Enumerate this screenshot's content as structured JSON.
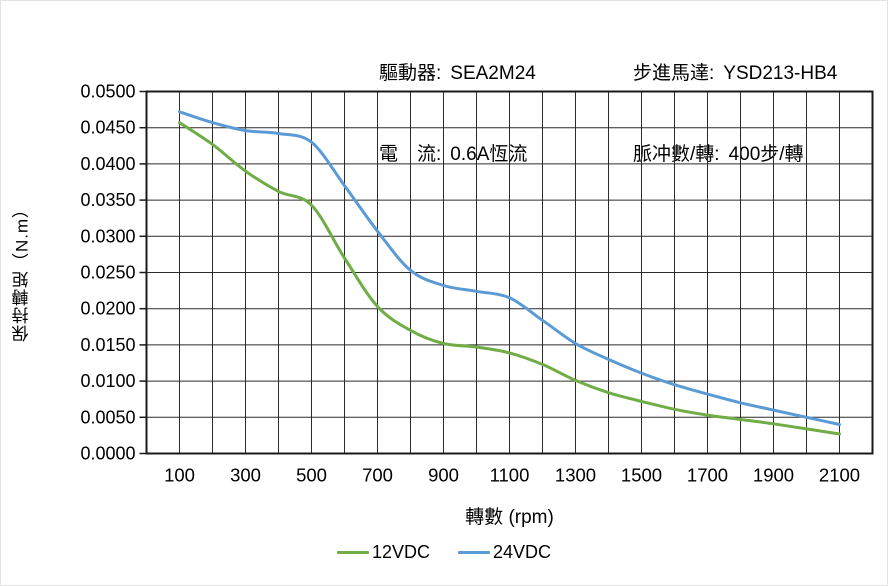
{
  "header": {
    "driver_label": "驅動器:",
    "driver_value": "SEA2M24",
    "current_label": "電　流:",
    "current_value": "0.6A恆流",
    "motor_label": "步進馬達:",
    "motor_value": "YSD213-HB4",
    "pulses_label": "脈冲數/轉:",
    "pulses_value": "400步/轉"
  },
  "chart_data": {
    "type": "line",
    "title": "",
    "xlabel": "轉數 (rpm)",
    "ylabel": "保持轉矩（N.m）",
    "xlim": [
      0,
      2200
    ],
    "ylim": [
      0,
      0.05
    ],
    "grid": {
      "x_step": 100,
      "y_step": 0.005,
      "visible": true
    },
    "x_ticks": [
      100,
      300,
      500,
      700,
      900,
      1100,
      1300,
      1500,
      1700,
      1900,
      2100
    ],
    "y_tick_labels": [
      "0.0000",
      "0.0050",
      "0.0100",
      "0.0150",
      "0.0200",
      "0.0250",
      "0.0300",
      "0.0350",
      "0.0400",
      "0.0450",
      "0.0500"
    ],
    "x": [
      100,
      200,
      300,
      400,
      500,
      600,
      700,
      800,
      900,
      1000,
      1100,
      1200,
      1300,
      1400,
      1500,
      1600,
      1700,
      1800,
      1900,
      2000,
      2100
    ],
    "series": [
      {
        "name": "12VDC",
        "color": "#70AD47",
        "values": [
          0.0457,
          0.0427,
          0.039,
          0.0362,
          0.0343,
          0.027,
          0.0203,
          0.017,
          0.0152,
          0.0147,
          0.0139,
          0.0123,
          0.0101,
          0.0084,
          0.0072,
          0.0061,
          0.0053,
          0.0047,
          0.0041,
          0.0034,
          0.0027
        ]
      },
      {
        "name": "24VDC",
        "color": "#5B9BD5",
        "values": [
          0.0472,
          0.0457,
          0.0446,
          0.0442,
          0.043,
          0.037,
          0.0307,
          0.0253,
          0.0232,
          0.0224,
          0.0215,
          0.0184,
          0.0152,
          0.013,
          0.0111,
          0.0095,
          0.0082,
          0.007,
          0.006,
          0.005,
          0.004
        ]
      }
    ],
    "legend_position": "bottom",
    "axis_color": "#1a1a1a",
    "grid_color": "#2b2b2b"
  }
}
